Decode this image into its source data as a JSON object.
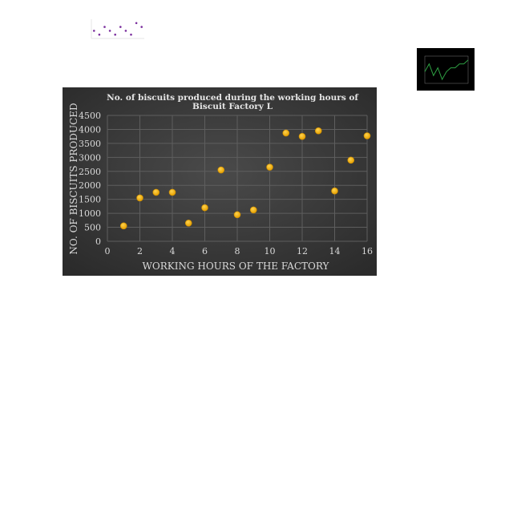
{
  "chart_data": [
    {
      "type": "scatter",
      "title": "No. of biscuits produced during the working hours of Biscuit Factory L",
      "title_lines": [
        "No. of biscuits produced during the working hours of",
        "Biscuit Factory L"
      ],
      "xlabel": "WORKING HOURS OF THE FACTORY",
      "ylabel": "NO. OF BISCUITS PRODUCED",
      "xlim": [
        0,
        16
      ],
      "ylim": [
        0,
        4500
      ],
      "x_ticks": [
        0,
        2,
        4,
        6,
        8,
        10,
        12,
        14,
        16
      ],
      "y_ticks": [
        0,
        500,
        1000,
        1500,
        2000,
        2500,
        3000,
        3500,
        4000,
        4500
      ],
      "grid": true,
      "colors": {
        "background": "#3a3a3a",
        "point": "#f5b400",
        "point_edge": "#c98a00",
        "grid": "#5e5e5e",
        "text": "#d9d9d9"
      },
      "x": [
        1,
        2,
        3,
        4,
        5,
        6,
        7,
        8,
        9,
        10,
        11,
        12,
        13,
        14,
        15,
        16
      ],
      "y": [
        550,
        1550,
        1750,
        1750,
        650,
        1200,
        2550,
        950,
        1120,
        2650,
        3870,
        3750,
        3950,
        1800,
        2900,
        3770
      ]
    },
    {
      "type": "scatter",
      "x": [
        1,
        2,
        3,
        4,
        5,
        6,
        7,
        8,
        9,
        10
      ],
      "y": [
        2,
        1,
        3,
        2,
        1,
        3,
        2,
        1,
        4,
        3
      ],
      "colors": {
        "background": "#ffffff",
        "point": "#7b2f9e"
      }
    },
    {
      "type": "line",
      "x": [
        1,
        2,
        3,
        4,
        5,
        6,
        7,
        8,
        9,
        10,
        11
      ],
      "y": [
        3,
        5,
        2,
        4,
        1,
        3,
        4,
        4,
        5,
        5,
        6
      ],
      "colors": {
        "background": "#000000",
        "line": "#2ea043"
      }
    }
  ]
}
